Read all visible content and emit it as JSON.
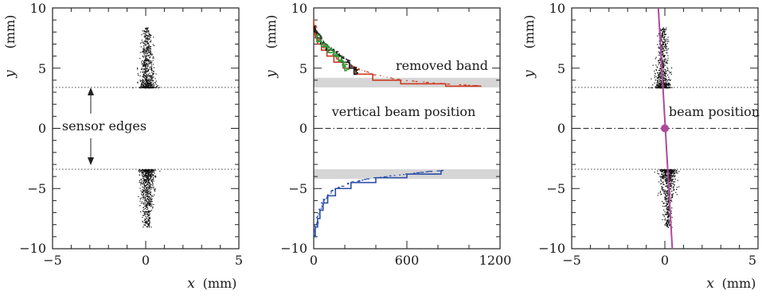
{
  "chart_data": [
    {
      "type": "scatter",
      "xlim": [
        -5,
        5
      ],
      "ylim": [
        -10,
        10
      ],
      "xlabel": "x",
      "xunit": "(mm)",
      "ylabel": "y",
      "yunit": "(mm)",
      "x_tick_labels": [
        "−5",
        "0",
        "5"
      ],
      "y_tick_labels": [
        "10",
        "5",
        "0",
        "−5",
        "−10"
      ],
      "grid": false,
      "sensor_edges": [
        3.4,
        -3.4
      ],
      "clusters": [
        {
          "x_center": 0.05,
          "y_from": 3.4,
          "y_to": 8.4
        },
        {
          "x_center": 0.05,
          "y_from": -3.4,
          "y_to": -8.2
        }
      ],
      "annotations": [
        "sensor edges"
      ]
    },
    {
      "type": "line",
      "xlim": [
        0,
        1200
      ],
      "ylim": [
        -10,
        10
      ],
      "ylabel": "y",
      "yunit": "(mm)",
      "x_tick_labels": [
        "0",
        "600",
        "1200"
      ],
      "y_tick_labels": [
        "10",
        "5",
        "0",
        "−5",
        "−10"
      ],
      "grid": false,
      "removed_bands": [
        [
          3.4,
          4.2
        ],
        [
          -4.2,
          -3.4
        ]
      ],
      "beam_position_y": 0,
      "series": [
        {
          "color": "#cc3b1f",
          "y": [
            9.0,
            8.2,
            7.5,
            7.0,
            6.5,
            6.0,
            5.5,
            5.0,
            4.5,
            4.0,
            3.7,
            3.5
          ],
          "x": [
            0,
            10,
            25,
            50,
            85,
            130,
            190,
            270,
            380,
            560,
            850,
            1080
          ]
        },
        {
          "color": "#111111",
          "y": [
            8.5,
            8.0,
            7.5,
            7.0,
            6.5,
            6.0,
            5.5,
            5.0,
            4.5
          ],
          "x": [
            5,
            20,
            45,
            80,
            130,
            180,
            230,
            260,
            280
          ]
        },
        {
          "color": "#2e9e3b",
          "y": [
            7.8,
            7.2,
            6.8,
            6.3,
            6.0,
            5.6,
            5.2,
            4.8
          ],
          "x": [
            20,
            50,
            90,
            130,
            160,
            190,
            200,
            215
          ]
        },
        {
          "color": "#2b4fa8",
          "y": [
            -3.5,
            -3.8,
            -4.1,
            -4.5,
            -5.0,
            -5.6,
            -6.2,
            -6.8,
            -7.5,
            -8.2,
            -9.0
          ],
          "x": [
            820,
            600,
            400,
            240,
            140,
            90,
            60,
            40,
            25,
            10,
            2
          ]
        }
      ],
      "annotations": [
        "removed band",
        "vertical beam position"
      ]
    },
    {
      "type": "scatter",
      "xlim": [
        -5,
        5
      ],
      "ylim": [
        -10,
        10
      ],
      "xlabel": "x",
      "xunit": "(mm)",
      "ylabel": "y",
      "yunit": "(mm)",
      "x_tick_labels": [
        "−5",
        "0",
        "5"
      ],
      "y_tick_labels": [
        "10",
        "5",
        "0",
        "−5",
        "−10"
      ],
      "grid": false,
      "sensor_edges": [
        3.4,
        -3.4
      ],
      "beam_position_y": 0,
      "fit_line": {
        "x1": -0.35,
        "y1": 10,
        "x2": 0.4,
        "y2": -10,
        "color": "#b0489b"
      },
      "beam_point": {
        "x": 0,
        "y": 0,
        "color": "#b0489b"
      },
      "clusters": [
        {
          "x_center": -0.15,
          "y_from": 3.4,
          "y_to": 8.4
        },
        {
          "x_center": 0.15,
          "y_from": -3.4,
          "y_to": -8.2
        }
      ],
      "annotations": [
        "beam position"
      ]
    }
  ]
}
